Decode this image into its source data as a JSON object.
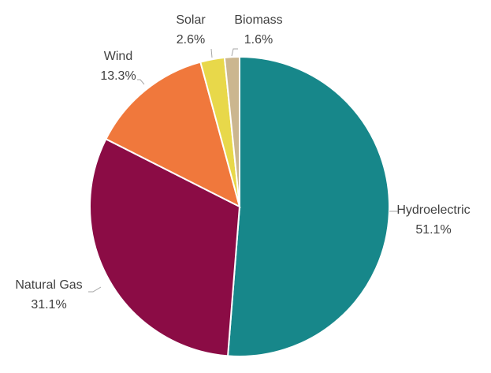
{
  "chart_data": {
    "type": "pie",
    "categories": [
      "Hydroelectric",
      "Natural Gas",
      "Wind",
      "Solar",
      "Biomass"
    ],
    "values": [
      51.1,
      31.1,
      13.3,
      2.6,
      1.6
    ],
    "value_labels": [
      "51.1%",
      "31.1%",
      "13.3%",
      "2.6%",
      "1.6%"
    ],
    "colors": [
      "#17878a",
      "#8b0c45",
      "#f0783c",
      "#e8d84a",
      "#cbb68f"
    ]
  }
}
